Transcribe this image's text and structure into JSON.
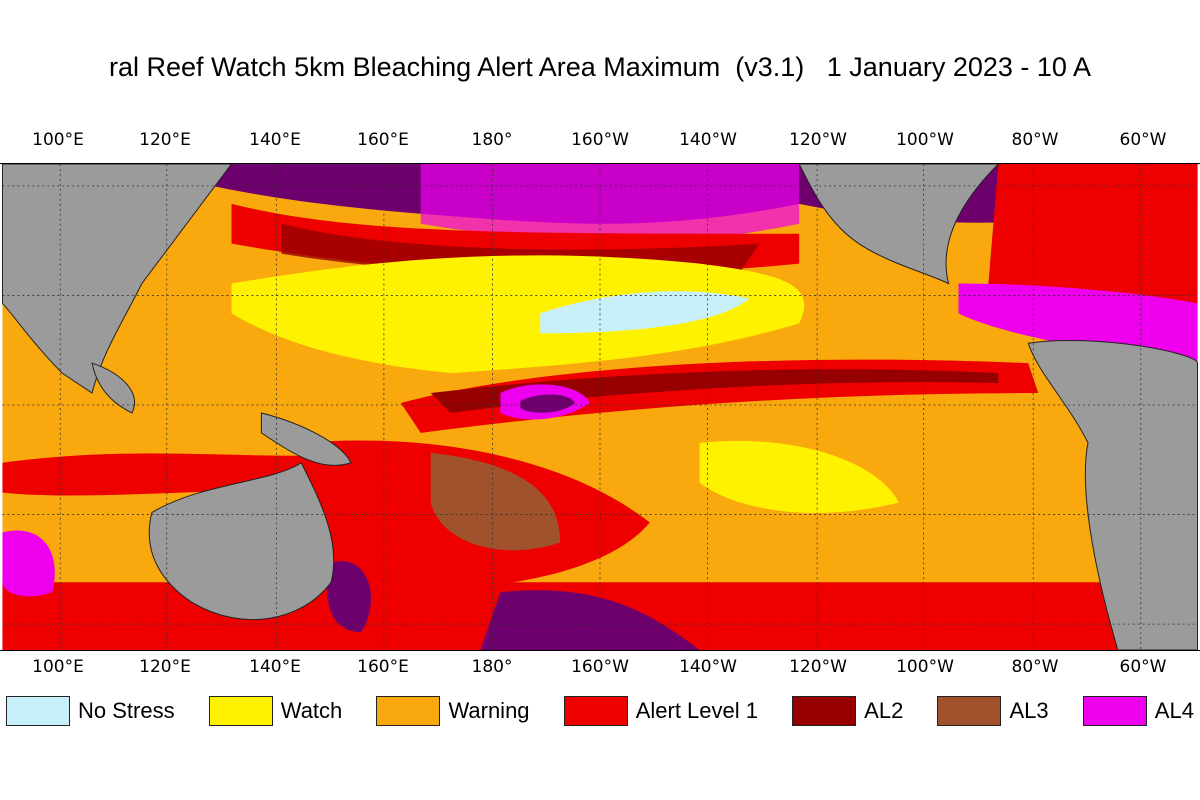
{
  "title": "ral Reef Watch 5km Bleaching Alert Area Maximum  (v3.1)   1 January 2023 - 10 A",
  "longitude_ticks": [
    "100°E",
    "120°E",
    "140°E",
    "160°E",
    "180°",
    "160°W",
    "140°W",
    "120°W",
    "100°W",
    "80°W",
    "60°W"
  ],
  "legend": [
    {
      "label": "No Stress",
      "color": "#c8f0fa"
    },
    {
      "label": "Watch",
      "color": "#fff200"
    },
    {
      "label": "Warning",
      "color": "#f9a90d"
    },
    {
      "label": "Alert Level 1",
      "color": "#ee0000"
    },
    {
      "label": "AL2",
      "color": "#960000"
    },
    {
      "label": "AL3",
      "color": "#a0522d"
    },
    {
      "label": "AL4",
      "color": "#ee00ee"
    }
  ],
  "colors": {
    "land": "#9b9b9b",
    "al5": "#6e006e",
    "no_stress": "#c8f0fa"
  }
}
